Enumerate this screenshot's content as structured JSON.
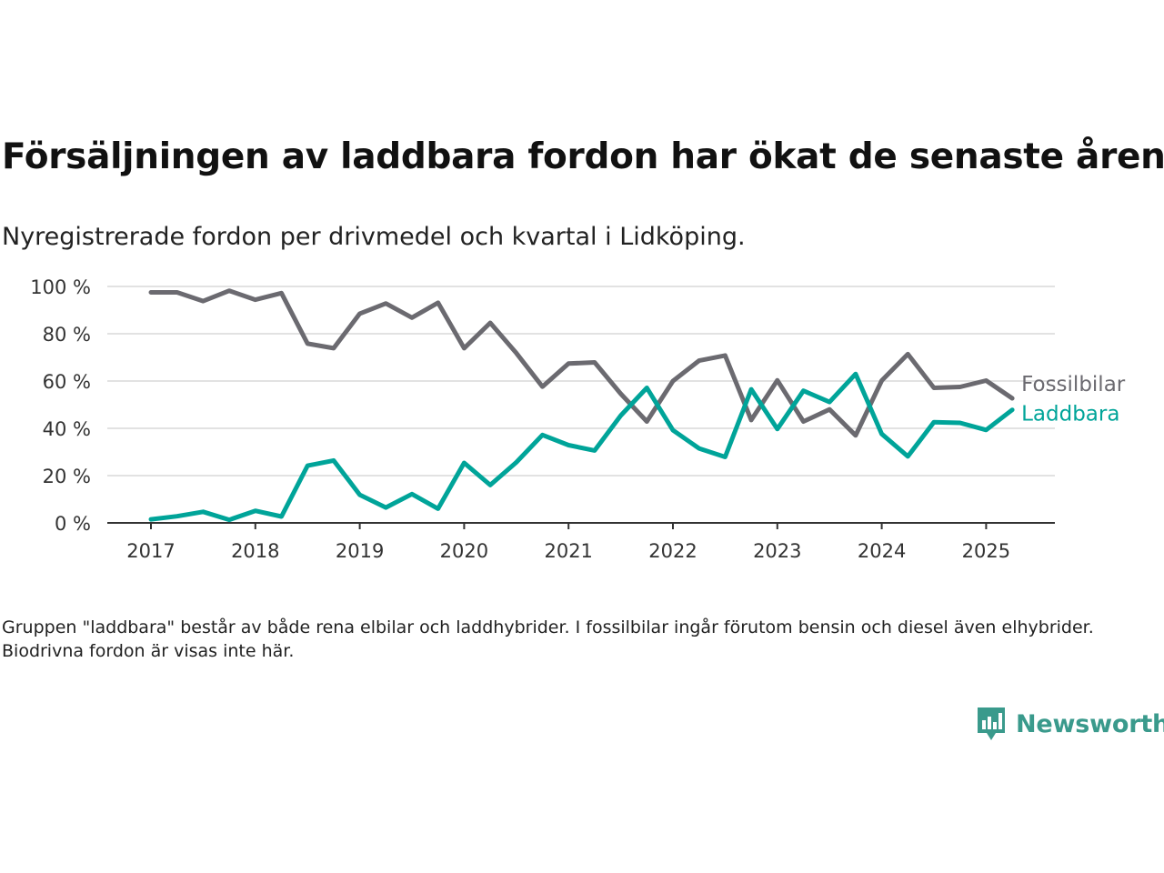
{
  "title": "Försäljningen av laddbara fordon har ökat de senaste åren",
  "subtitle": "Nyregistrerade fordon per drivmedel och kvartal i Lidköping.",
  "note": "Gruppen \"laddbara\" består av både rena elbilar och laddhybrider. I fossilbilar ingår förutom bensin och diesel även elhybrider. Biodrivna fordon är visas inte här.",
  "brand": {
    "name": "Newsworthy",
    "color": "#3a9a8c",
    "icon": "newsworthy-logo-icon"
  },
  "chart_data": {
    "type": "line",
    "x_start_year": 2017,
    "x_ticks": [
      "2017",
      "2018",
      "2019",
      "2020",
      "2021",
      "2022",
      "2023",
      "2024",
      "2025"
    ],
    "y_ticks": [
      "0 %",
      "20 %",
      "40 %",
      "60 %",
      "80 %",
      "100 %"
    ],
    "ylim": [
      0,
      100
    ],
    "grid": true,
    "x": [
      "2017-Q1",
      "2017-Q2",
      "2017-Q3",
      "2017-Q4",
      "2018-Q1",
      "2018-Q2",
      "2018-Q3",
      "2018-Q4",
      "2019-Q1",
      "2019-Q2",
      "2019-Q3",
      "2019-Q4",
      "2020-Q1",
      "2020-Q2",
      "2020-Q3",
      "2020-Q4",
      "2021-Q1",
      "2021-Q2",
      "2021-Q3",
      "2021-Q4",
      "2022-Q1",
      "2022-Q2",
      "2022-Q3",
      "2022-Q4",
      "2023-Q1",
      "2023-Q2",
      "2023-Q3",
      "2023-Q4",
      "2024-Q1",
      "2024-Q2",
      "2024-Q3",
      "2024-Q4",
      "2025-Q1",
      "2025-Q2"
    ],
    "series": [
      {
        "name": "Fossilbilar",
        "color": "#6b6a70",
        "values": [
          97.5,
          97.5,
          93.8,
          98.2,
          94.4,
          97.2,
          75.8,
          73.9,
          88.5,
          92.8,
          86.8,
          93.1,
          73.9,
          84.6,
          71.8,
          57.6,
          67.4,
          67.9,
          54.6,
          42.9,
          60,
          68.6,
          70.8,
          43.5,
          60.3,
          42.9,
          48,
          37,
          60.2,
          71.4,
          57.1,
          57.5,
          60.2,
          52.7
        ],
        "label_color": "#6b6a70"
      },
      {
        "name": "Laddbara",
        "color": "#00a499",
        "values": [
          1.5,
          2.8,
          4.7,
          1.3,
          5.1,
          2.7,
          24.2,
          26.4,
          11.9,
          6.5,
          12.2,
          6,
          25.4,
          16,
          25.6,
          37.2,
          32.9,
          30.6,
          45.4,
          57.1,
          39.2,
          31.5,
          27.9,
          56.5,
          39.7,
          55.9,
          51.1,
          63,
          37.6,
          28.1,
          42.6,
          42.3,
          39.3,
          47.8
        ],
        "label_color": "#00a499"
      }
    ]
  }
}
